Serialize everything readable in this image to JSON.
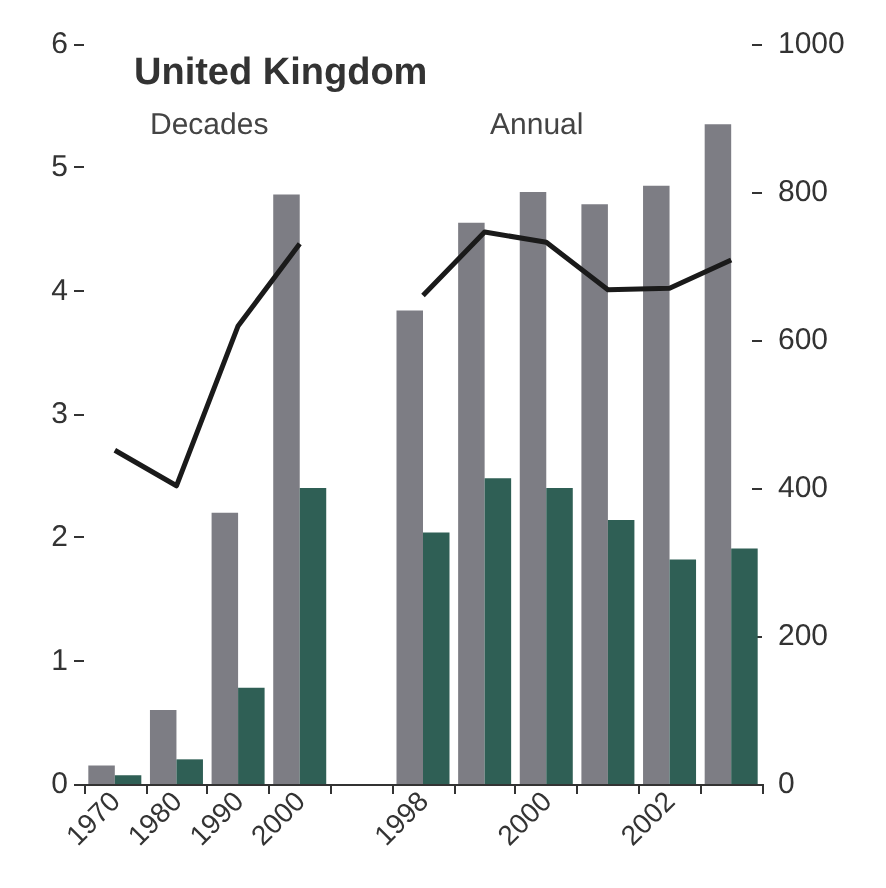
{
  "chart_data": {
    "type": "bar",
    "title": "United Kingdom",
    "annotations": [
      "Decades",
      "Annual"
    ],
    "categories": [
      "1970",
      "1980",
      "1990",
      "2000",
      null,
      "1998",
      null,
      "2000",
      null,
      "2002",
      null
    ],
    "series": [
      {
        "color": "#7d7d84",
        "values": [
          0.15,
          0.6,
          2.2,
          4.78,
          null,
          3.84,
          4.55,
          4.8,
          4.7,
          4.85,
          5.35
        ]
      },
      {
        "color": "#2f5f55",
        "values": [
          0.07,
          0.2,
          0.78,
          2.4,
          null,
          2.04,
          2.48,
          2.4,
          2.14,
          1.82,
          1.91
        ]
      },
      {
        "type": "line",
        "axis": "y2",
        "color": "#1a1a1a",
        "values": [
          451,
          403,
          619,
          730,
          null,
          660,
          746,
          732,
          668,
          670,
          708
        ]
      }
    ],
    "ylim": [
      0,
      6
    ],
    "yticks": [
      0,
      1,
      2,
      3,
      4,
      5,
      6
    ],
    "y2lim": [
      0,
      1000
    ],
    "y2ticks": [
      0,
      200,
      400,
      600,
      800,
      1000
    ],
    "grid": false,
    "marker": "none"
  }
}
